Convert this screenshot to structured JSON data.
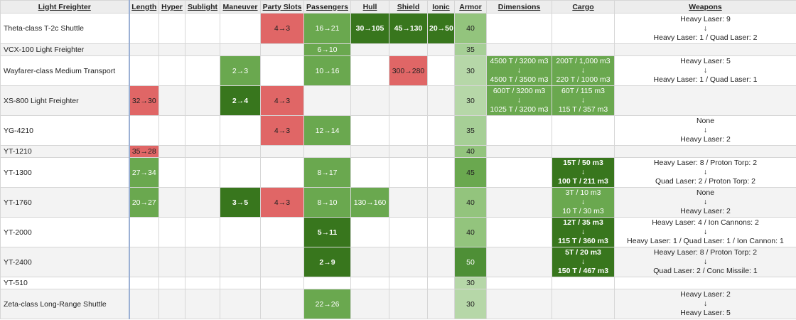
{
  "headers": [
    "Light Freighter",
    "Length",
    "Hyper",
    "Sublight",
    "Maneuver",
    "Party Slots",
    "Passengers",
    "Hull",
    "Shield",
    "Ionic",
    "Armor",
    "Dimensions",
    "Cargo",
    "Weapons"
  ],
  "arrow": "↓",
  "rows": [
    {
      "name": "Theta-class T-2c Shuttle",
      "length": "",
      "hyper": "",
      "sublight": "",
      "maneuver": "",
      "party": "4→3",
      "passengers": "16→21",
      "hull": "30→105",
      "shield": "45→130",
      "ionic": "20→50",
      "armor": "40",
      "dim_from": "",
      "dim_to": "",
      "cargo_from": "",
      "cargo_to": "",
      "weapons_from": "Heavy Laser: 9",
      "weapons_to": "Heavy Laser: 1 / Quad Laser: 2"
    },
    {
      "name": "VCX-100 Light Freighter",
      "length": "",
      "hyper": "",
      "sublight": "",
      "maneuver": "",
      "party": "",
      "passengers": "6→10",
      "hull": "",
      "shield": "",
      "ionic": "",
      "armor": "35",
      "dim_from": "",
      "dim_to": "",
      "cargo_from": "",
      "cargo_to": "",
      "weapons_from": "",
      "weapons_to": ""
    },
    {
      "name": "Wayfarer-class Medium Transport",
      "length": "",
      "hyper": "",
      "sublight": "",
      "maneuver": "2→3",
      "party": "",
      "passengers": "10→16",
      "hull": "",
      "shield": "300→280",
      "ionic": "",
      "armor": "30",
      "dim_from": "4500 T / 3200 m3",
      "dim_to": "4500 T / 3500 m3",
      "cargo_from": "200T / 1,000 m3",
      "cargo_to": "220 T / 1000 m3",
      "weapons_from": "Heavy Laser: 5",
      "weapons_to": "Heavy Laser: 1 / Quad Laser: 1"
    },
    {
      "name": "XS-800 Light Freighter",
      "length": "32→30",
      "hyper": "",
      "sublight": "",
      "maneuver": "2→4",
      "party": "4→3",
      "passengers": "",
      "hull": "",
      "shield": "",
      "ionic": "",
      "armor": "30",
      "dim_from": "600T / 3200 m3",
      "dim_to": "1025 T / 3200 m3",
      "cargo_from": "60T / 115 m3",
      "cargo_to": "115 T / 357 m3",
      "weapons_from": "",
      "weapons_to": ""
    },
    {
      "name": "YG-4210",
      "length": "",
      "hyper": "",
      "sublight": "",
      "maneuver": "",
      "party": "4→3",
      "passengers": "12→14",
      "hull": "",
      "shield": "",
      "ionic": "",
      "armor": "35",
      "dim_from": "",
      "dim_to": "",
      "cargo_from": "",
      "cargo_to": "",
      "weapons_from": "None",
      "weapons_to": "Heavy Laser: 2"
    },
    {
      "name": "YT-1210",
      "length": "35→28",
      "hyper": "",
      "sublight": "",
      "maneuver": "",
      "party": "",
      "passengers": "",
      "hull": "",
      "shield": "",
      "ionic": "",
      "armor": "40",
      "dim_from": "",
      "dim_to": "",
      "cargo_from": "",
      "cargo_to": "",
      "weapons_from": "",
      "weapons_to": ""
    },
    {
      "name": "YT-1300",
      "length": "27→34",
      "hyper": "",
      "sublight": "",
      "maneuver": "",
      "party": "",
      "passengers": "8→17",
      "hull": "",
      "shield": "",
      "ionic": "",
      "armor": "45",
      "dim_from": "",
      "dim_to": "",
      "cargo_from": "15T / 50 m3",
      "cargo_to": "100 T / 211 m3",
      "weapons_from": "Heavy Laser: 8 / Proton Torp: 2",
      "weapons_to": "Quad Laser: 2 / Proton Torp: 2"
    },
    {
      "name": "YT-1760",
      "length": "20→27",
      "hyper": "",
      "sublight": "",
      "maneuver": "3→5",
      "party": "4→3",
      "passengers": "8→10",
      "hull": "130→160",
      "shield": "",
      "ionic": "",
      "armor": "40",
      "dim_from": "",
      "dim_to": "",
      "cargo_from": "3T / 10 m3",
      "cargo_to": "10 T / 30 m3",
      "weapons_from": "None",
      "weapons_to": "Heavy Laser: 2"
    },
    {
      "name": "YT-2000",
      "length": "",
      "hyper": "",
      "sublight": "",
      "maneuver": "",
      "party": "",
      "passengers": "5→11",
      "hull": "",
      "shield": "",
      "ionic": "",
      "armor": "40",
      "dim_from": "",
      "dim_to": "",
      "cargo_from": "12T / 35 m3",
      "cargo_to": "115 T / 360 m3",
      "weapons_from": "Heavy Laser: 4 / Ion Cannons: 2",
      "weapons_to": "Heavy Laser: 1 / Quad Laser: 1 / Ion Cannon: 1"
    },
    {
      "name": "YT-2400",
      "length": "",
      "hyper": "",
      "sublight": "",
      "maneuver": "",
      "party": "",
      "passengers": "2→9",
      "hull": "",
      "shield": "",
      "ionic": "",
      "armor": "50",
      "dim_from": "",
      "dim_to": "",
      "cargo_from": "5T / 20 m3",
      "cargo_to": "150 T / 467 m3",
      "weapons_from": "Heavy Laser: 8 / Proton Torp: 2",
      "weapons_to": "Quad Laser: 2 / Conc Missile: 1"
    },
    {
      "name": "YT-510",
      "length": "",
      "hyper": "",
      "sublight": "",
      "maneuver": "",
      "party": "",
      "passengers": "",
      "hull": "",
      "shield": "",
      "ionic": "",
      "armor": "30",
      "dim_from": "",
      "dim_to": "",
      "cargo_from": "",
      "cargo_to": "",
      "weapons_from": "",
      "weapons_to": ""
    },
    {
      "name": "Zeta-class Long-Range Shuttle",
      "length": "",
      "hyper": "",
      "sublight": "",
      "maneuver": "",
      "party": "",
      "passengers": "22→26",
      "hull": "",
      "shield": "",
      "ionic": "",
      "armor": "30",
      "dim_from": "",
      "dim_to": "",
      "cargo_from": "",
      "cargo_to": "",
      "weapons_from": "Heavy Laser: 2",
      "weapons_to": "Heavy Laser: 5"
    }
  ],
  "colors": {
    "light_green": "#6aa84f",
    "dark_green": "#38761d",
    "red": "#e06666",
    "armor_30": "#b6d7a8",
    "armor_35": "#a6cf96",
    "armor_40": "#93c47d",
    "armor_45": "#6aa84f",
    "armor_50": "#4e8f36"
  }
}
